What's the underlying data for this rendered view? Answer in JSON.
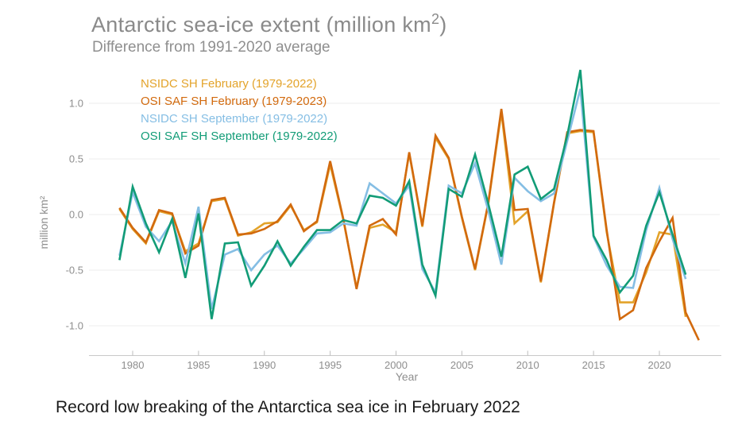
{
  "header": {
    "title": "Antarctic sea-ice extent (million km",
    "title_sup": "2",
    "title_close": ")",
    "subtitle": "Difference from 1991-2020 average"
  },
  "caption": "Record low breaking of  the Antarctica sea ice in February 2022",
  "chart_data": {
    "type": "line",
    "title": "Antarctic sea-ice extent (million km²)",
    "subtitle": "Difference from 1991-2020 average",
    "xlabel": "Year",
    "ylabel": "million km²",
    "grid": "horizontal",
    "legend_position": "top-left-inside",
    "xlim": [
      1977,
      2024.5
    ],
    "ylim": [
      -1.25,
      1.35
    ],
    "x_ticks": [
      {
        "label": "1980",
        "value": 1980
      },
      {
        "label": "1985",
        "value": 1985
      },
      {
        "label": "1990",
        "value": 1990
      },
      {
        "label": "1995",
        "value": 1995
      },
      {
        "label": "2000",
        "value": 2000
      },
      {
        "label": "2005",
        "value": 2005
      },
      {
        "label": "2010",
        "value": 2010
      },
      {
        "label": "2015",
        "value": 2015
      },
      {
        "label": "2020",
        "value": 2020
      }
    ],
    "y_ticks": [
      {
        "label": "1.0",
        "value": 1.0
      },
      {
        "label": "0.5",
        "value": 0.5
      },
      {
        "label": "0.0",
        "value": 0.0
      },
      {
        "label": "-0.5",
        "value": -0.5
      },
      {
        "label": "-1.0",
        "value": -1.0
      }
    ],
    "years": [
      1979,
      1980,
      1981,
      1982,
      1983,
      1984,
      1985,
      1986,
      1987,
      1988,
      1989,
      1990,
      1991,
      1992,
      1993,
      1994,
      1995,
      1996,
      1997,
      1998,
      1999,
      2000,
      2001,
      2002,
      2003,
      2004,
      2005,
      2006,
      2007,
      2008,
      2009,
      2010,
      2011,
      2012,
      2013,
      2014,
      2015,
      2016,
      2017,
      2018,
      2019,
      2020,
      2021,
      2022,
      2023
    ],
    "series": [
      {
        "name": "NSIDC SH February (1979-2022)",
        "color": "#e3a32a",
        "values": [
          0.05,
          -0.13,
          -0.26,
          0.03,
          0.0,
          -0.33,
          -0.26,
          0.12,
          0.14,
          -0.19,
          -0.16,
          -0.08,
          -0.07,
          0.08,
          -0.14,
          -0.07,
          0.45,
          -0.05,
          -0.66,
          -0.12,
          -0.09,
          -0.16,
          0.55,
          -0.11,
          0.69,
          0.5,
          -0.03,
          -0.5,
          0.09,
          0.92,
          -0.08,
          0.03,
          -0.61,
          0.1,
          0.73,
          0.75,
          0.74,
          -0.16,
          -0.79,
          -0.79,
          -0.52,
          -0.16,
          -0.18,
          -0.92,
          null
        ]
      },
      {
        "name": "OSI SAF SH February (1979-2023)",
        "color": "#d26a0e",
        "values": [
          0.06,
          -0.12,
          -0.25,
          0.04,
          0.01,
          -0.35,
          -0.28,
          0.13,
          0.15,
          -0.18,
          -0.17,
          -0.13,
          -0.06,
          0.09,
          -0.15,
          -0.06,
          0.48,
          -0.04,
          -0.67,
          -0.1,
          -0.04,
          -0.18,
          0.56,
          -0.1,
          0.71,
          0.51,
          -0.02,
          -0.49,
          0.1,
          0.95,
          0.04,
          0.05,
          -0.6,
          0.11,
          0.74,
          0.76,
          0.75,
          -0.14,
          -0.94,
          -0.86,
          -0.48,
          -0.24,
          -0.03,
          -0.88,
          -1.13
        ]
      },
      {
        "name": "NSIDC SH September (1979-2022)",
        "color": "#85bee4",
        "values": [
          -0.37,
          0.2,
          -0.11,
          -0.24,
          -0.06,
          -0.44,
          0.07,
          -0.85,
          -0.36,
          -0.31,
          -0.5,
          -0.36,
          -0.28,
          -0.44,
          -0.31,
          -0.17,
          -0.16,
          -0.08,
          -0.1,
          0.28,
          0.19,
          0.1,
          0.26,
          -0.49,
          -0.7,
          0.26,
          0.19,
          0.46,
          0.04,
          -0.45,
          0.33,
          0.21,
          0.12,
          0.19,
          0.66,
          1.13,
          -0.2,
          -0.46,
          -0.65,
          -0.66,
          -0.14,
          0.24,
          -0.22,
          -0.58,
          null
        ]
      },
      {
        "name": "OSI SAF SH September (1979-2022)",
        "color": "#129c77",
        "values": [
          -0.41,
          0.25,
          -0.08,
          -0.34,
          -0.04,
          -0.57,
          0.01,
          -0.94,
          -0.26,
          -0.25,
          -0.64,
          -0.46,
          -0.24,
          -0.46,
          -0.29,
          -0.14,
          -0.14,
          -0.05,
          -0.08,
          0.17,
          0.15,
          0.08,
          0.3,
          -0.45,
          -0.73,
          0.23,
          0.16,
          0.54,
          0.1,
          -0.38,
          0.36,
          0.43,
          0.14,
          0.23,
          0.71,
          1.3,
          -0.19,
          -0.41,
          -0.7,
          -0.55,
          -0.1,
          0.2,
          -0.18,
          -0.54,
          null
        ]
      }
    ]
  }
}
